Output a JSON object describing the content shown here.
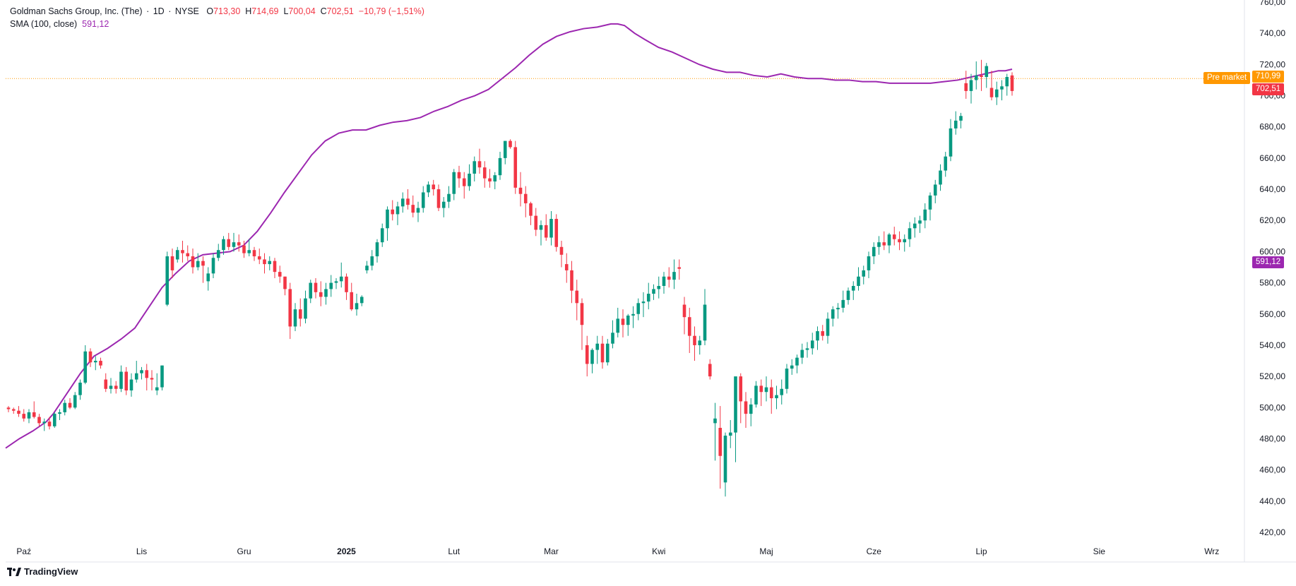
{
  "legend": {
    "symbol": "Goldman Sachs Group, Inc. (The)",
    "interval": "1D",
    "exchange": "NYSE",
    "o_label": "O",
    "o": "713,30",
    "h_label": "H",
    "h": "714,69",
    "l_label": "L",
    "l": "700,04",
    "c_label": "C",
    "c": "702,51",
    "change": "−10,79 (−1,51%)",
    "sma_label": "SMA (100, close)",
    "sma_value": "591,12"
  },
  "tags": {
    "premarket_label": "Pre market",
    "premarket_price": "710,99",
    "last_price": "702,51",
    "sma_price": "591,12"
  },
  "brand": {
    "name": "TradingView"
  },
  "colors": {
    "up": "#089981",
    "down": "#f23645",
    "sma": "#9c27b0",
    "premarket": "#ff9800"
  },
  "chart_data": {
    "type": "candlestick",
    "title": "",
    "y_ticks": [
      "760,00",
      "740,00",
      "720,00",
      "700,00",
      "680,00",
      "660,00",
      "640,00",
      "620,00",
      "600,00",
      "580,00",
      "560,00",
      "540,00",
      "520,00",
      "500,00",
      "480,00",
      "460,00",
      "440,00",
      "420,00"
    ],
    "y_range": [
      410,
      763
    ],
    "x_ticks": [
      {
        "label": "Paź",
        "index": 3,
        "bold": false
      },
      {
        "label": "Lis",
        "index": 26,
        "bold": false
      },
      {
        "label": "Gru",
        "index": 46,
        "bold": false
      },
      {
        "label": "2025",
        "index": 66,
        "bold": true
      },
      {
        "label": "Lut",
        "index": 87,
        "bold": false
      },
      {
        "label": "Mar",
        "index": 106,
        "bold": false
      },
      {
        "label": "Kwi",
        "index": 127,
        "bold": false
      },
      {
        "label": "Maj",
        "index": 148,
        "bold": false
      },
      {
        "label": "Cze",
        "index": 169,
        "bold": false
      },
      {
        "label": "Lip",
        "index": 190,
        "bold": false
      },
      {
        "label": "Sie",
        "index": 213,
        "bold": false
      },
      {
        "label": "Wrz",
        "index": 235,
        "bold": false
      }
    ],
    "x_slots": 250,
    "candles": [
      [
        500,
        501,
        497,
        499
      ],
      [
        499,
        500,
        496,
        498
      ],
      [
        498,
        501,
        494,
        496
      ],
      [
        496,
        499,
        491,
        493
      ],
      [
        493,
        499,
        490,
        497
      ],
      [
        497,
        504,
        493,
        494
      ],
      [
        494,
        496,
        488,
        490
      ],
      [
        490,
        493,
        485,
        491
      ],
      [
        491,
        494,
        486,
        488
      ],
      [
        488,
        497,
        487,
        496
      ],
      [
        496,
        499,
        492,
        497
      ],
      [
        497,
        505,
        495,
        503
      ],
      [
        503,
        506,
        499,
        500
      ],
      [
        500,
        510,
        499,
        508
      ],
      [
        508,
        518,
        505,
        516
      ],
      [
        516,
        540,
        515,
        536
      ],
      [
        536,
        538,
        526,
        529
      ],
      [
        529,
        533,
        524,
        530
      ],
      [
        530,
        532,
        525,
        527
      ],
      [
        518,
        522,
        510,
        512
      ],
      [
        512,
        519,
        509,
        514
      ],
      [
        514,
        517,
        509,
        512
      ],
      [
        512,
        527,
        510,
        523
      ],
      [
        523,
        526,
        508,
        511
      ],
      [
        511,
        522,
        507,
        518
      ],
      [
        518,
        530,
        516,
        522
      ],
      [
        522,
        526,
        518,
        524
      ],
      [
        524,
        528,
        511,
        519
      ],
      [
        519,
        524,
        511,
        518
      ],
      [
        511,
        522,
        508,
        513
      ],
      [
        513,
        527,
        511,
        527
      ],
      [
        566,
        600,
        565,
        597
      ],
      [
        597,
        602,
        583,
        588
      ],
      [
        595,
        603,
        593,
        601
      ],
      [
        601,
        607,
        593,
        599
      ],
      [
        599,
        604,
        594,
        597
      ],
      [
        597,
        602,
        586,
        590
      ],
      [
        590,
        599,
        588,
        594
      ],
      [
        594,
        597,
        580,
        591
      ],
      [
        581,
        590,
        575,
        586
      ],
      [
        586,
        599,
        583,
        596
      ],
      [
        596,
        605,
        594,
        601
      ],
      [
        601,
        610,
        598,
        608
      ],
      [
        608,
        612,
        601,
        603
      ],
      [
        603,
        612,
        600,
        606
      ],
      [
        606,
        611,
        600,
        604
      ],
      [
        604,
        607,
        596,
        599
      ],
      [
        599,
        608,
        597,
        601
      ],
      [
        601,
        603,
        594,
        597
      ],
      [
        597,
        602,
        592,
        595
      ],
      [
        595,
        599,
        586,
        592
      ],
      [
        592,
        597,
        588,
        594
      ],
      [
        594,
        596,
        583,
        587
      ],
      [
        587,
        591,
        580,
        584
      ],
      [
        584,
        584,
        572,
        576
      ],
      [
        576,
        580,
        544,
        552
      ],
      [
        552,
        567,
        549,
        563
      ],
      [
        563,
        570,
        552,
        557
      ],
      [
        557,
        575,
        554,
        570
      ],
      [
        570,
        582,
        567,
        580
      ],
      [
        580,
        583,
        570,
        574
      ],
      [
        574,
        581,
        565,
        571
      ],
      [
        571,
        580,
        566,
        576
      ],
      [
        576,
        585,
        571,
        580
      ],
      [
        580,
        583,
        576,
        581
      ],
      [
        581,
        593,
        577,
        584
      ],
      [
        584,
        586,
        569,
        574
      ],
      [
        574,
        580,
        562,
        563
      ],
      [
        563,
        573,
        559,
        567
      ],
      [
        567,
        572,
        565,
        571
      ],
      [
        588,
        594,
        586,
        591
      ],
      [
        591,
        601,
        588,
        597
      ],
      [
        597,
        608,
        593,
        606
      ],
      [
        606,
        618,
        603,
        615
      ],
      [
        615,
        629,
        607,
        627
      ],
      [
        627,
        633,
        620,
        624
      ],
      [
        624,
        632,
        617,
        629
      ],
      [
        629,
        638,
        625,
        634
      ],
      [
        634,
        640,
        627,
        630
      ],
      [
        630,
        636,
        622,
        625
      ],
      [
        625,
        632,
        619,
        628
      ],
      [
        628,
        642,
        625,
        638
      ],
      [
        638,
        645,
        635,
        643
      ],
      [
        643,
        646,
        636,
        640
      ],
      [
        640,
        643,
        626,
        628
      ],
      [
        628,
        635,
        622,
        632
      ],
      [
        632,
        642,
        628,
        637
      ],
      [
        637,
        653,
        633,
        651
      ],
      [
        651,
        655,
        641,
        647
      ],
      [
        647,
        651,
        634,
        642
      ],
      [
        642,
        656,
        639,
        650
      ],
      [
        650,
        661,
        645,
        658
      ],
      [
        658,
        666,
        650,
        654
      ],
      [
        654,
        658,
        641,
        647
      ],
      [
        647,
        653,
        641,
        645
      ],
      [
        645,
        651,
        640,
        649
      ],
      [
        649,
        664,
        646,
        660
      ],
      [
        660,
        671,
        656,
        671
      ],
      [
        671,
        672,
        666,
        667
      ],
      [
        667,
        671,
        637,
        641
      ],
      [
        641,
        651,
        629,
        637
      ],
      [
        637,
        642,
        622,
        631
      ],
      [
        631,
        632,
        617,
        623
      ],
      [
        623,
        628,
        610,
        614
      ],
      [
        614,
        620,
        604,
        617
      ],
      [
        617,
        624,
        607,
        609
      ],
      [
        609,
        626,
        604,
        621
      ],
      [
        621,
        624,
        600,
        603
      ],
      [
        603,
        607,
        590,
        598
      ],
      [
        592,
        599,
        580,
        588
      ],
      [
        588,
        594,
        567,
        575
      ],
      [
        575,
        582,
        556,
        567
      ],
      [
        567,
        570,
        537,
        553
      ],
      [
        540,
        546,
        520,
        528
      ],
      [
        528,
        538,
        522,
        537
      ],
      [
        537,
        546,
        528,
        541
      ],
      [
        541,
        546,
        525,
        529
      ],
      [
        529,
        544,
        527,
        541
      ],
      [
        541,
        556,
        538,
        548
      ],
      [
        548,
        564,
        545,
        557
      ],
      [
        557,
        563,
        545,
        553
      ],
      [
        553,
        560,
        546,
        559
      ],
      [
        559,
        565,
        551,
        560
      ],
      [
        560,
        570,
        556,
        567
      ],
      [
        567,
        574,
        558,
        568
      ],
      [
        568,
        580,
        563,
        573
      ],
      [
        573,
        579,
        569,
        576
      ],
      [
        576,
        584,
        570,
        578
      ],
      [
        578,
        587,
        573,
        584
      ],
      [
        584,
        590,
        577,
        582
      ],
      [
        582,
        595,
        576,
        587
      ],
      [
        590,
        595,
        582,
        589
      ],
      [
        566,
        571,
        547,
        558
      ],
      [
        558,
        564,
        535,
        546
      ],
      [
        546,
        552,
        530,
        540
      ],
      [
        540,
        546,
        534,
        543
      ],
      [
        543,
        576,
        540,
        566
      ],
      [
        528,
        531,
        518,
        520
      ],
      [
        490,
        503,
        466,
        493
      ],
      [
        487,
        501,
        448,
        469
      ],
      [
        452,
        484,
        443,
        482
      ],
      [
        482,
        492,
        474,
        484
      ],
      [
        484,
        518,
        465,
        520
      ],
      [
        520,
        522,
        490,
        504
      ],
      [
        504,
        510,
        487,
        496
      ],
      [
        496,
        506,
        488,
        502
      ],
      [
        502,
        517,
        500,
        514
      ],
      [
        514,
        518,
        501,
        510
      ],
      [
        510,
        520,
        504,
        513
      ],
      [
        513,
        518,
        496,
        506
      ],
      [
        506,
        514,
        499,
        508
      ],
      [
        508,
        518,
        502,
        512
      ],
      [
        512,
        528,
        509,
        525
      ],
      [
        525,
        531,
        521,
        527
      ],
      [
        527,
        534,
        522,
        532
      ],
      [
        532,
        541,
        528,
        537
      ],
      [
        537,
        542,
        532,
        538
      ],
      [
        538,
        548,
        534,
        543
      ],
      [
        543,
        552,
        537,
        549
      ],
      [
        549,
        553,
        543,
        546
      ],
      [
        546,
        561,
        541,
        557
      ],
      [
        557,
        565,
        552,
        563
      ],
      [
        563,
        567,
        557,
        564
      ],
      [
        564,
        575,
        561,
        569
      ],
      [
        569,
        577,
        566,
        575
      ],
      [
        575,
        581,
        569,
        578
      ],
      [
        578,
        590,
        575,
        584
      ],
      [
        584,
        591,
        579,
        588
      ],
      [
        588,
        600,
        583,
        597
      ],
      [
        597,
        606,
        592,
        603
      ],
      [
        603,
        610,
        598,
        606
      ],
      [
        606,
        613,
        601,
        604
      ],
      [
        604,
        612,
        599,
        611
      ],
      [
        611,
        616,
        604,
        608
      ],
      [
        608,
        613,
        601,
        606
      ],
      [
        606,
        611,
        600,
        608
      ],
      [
        608,
        619,
        603,
        615
      ],
      [
        615,
        622,
        609,
        618
      ],
      [
        618,
        623,
        612,
        620
      ],
      [
        620,
        631,
        615,
        627
      ],
      [
        627,
        638,
        620,
        636
      ],
      [
        636,
        646,
        631,
        643
      ],
      [
        643,
        656,
        639,
        652
      ],
      [
        652,
        664,
        648,
        661
      ],
      [
        661,
        685,
        658,
        679
      ],
      [
        679,
        690,
        675,
        684
      ],
      [
        684,
        689,
        679,
        687
      ],
      [
        708,
        716,
        698,
        703
      ],
      [
        703,
        714,
        695,
        710
      ],
      [
        710,
        722,
        704,
        713
      ],
      [
        713,
        723,
        703,
        712
      ],
      [
        712,
        721,
        705,
        719
      ],
      [
        705,
        716,
        697,
        699
      ],
      [
        699,
        709,
        694,
        704
      ],
      [
        704,
        710,
        697,
        706
      ],
      [
        706,
        714,
        700,
        712
      ],
      [
        713,
        715,
        700,
        703
      ]
    ],
    "sma_points": [
      [
        0,
        474
      ],
      [
        20,
        480
      ],
      [
        40,
        485
      ],
      [
        60,
        491
      ],
      [
        70,
        496
      ],
      [
        90,
        509
      ],
      [
        110,
        522
      ],
      [
        130,
        533
      ],
      [
        150,
        538
      ],
      [
        170,
        544
      ],
      [
        190,
        551
      ],
      [
        210,
        564
      ],
      [
        230,
        577
      ],
      [
        250,
        586
      ],
      [
        270,
        594
      ],
      [
        290,
        598
      ],
      [
        310,
        599
      ],
      [
        330,
        600
      ],
      [
        350,
        604
      ],
      [
        370,
        613
      ],
      [
        390,
        625
      ],
      [
        410,
        638
      ],
      [
        430,
        650
      ],
      [
        450,
        662
      ],
      [
        470,
        671
      ],
      [
        490,
        676
      ],
      [
        510,
        678
      ],
      [
        530,
        678
      ],
      [
        550,
        681
      ],
      [
        570,
        683
      ],
      [
        590,
        684
      ],
      [
        610,
        686
      ],
      [
        630,
        690
      ],
      [
        650,
        693
      ],
      [
        670,
        697
      ],
      [
        690,
        700
      ],
      [
        710,
        704
      ],
      [
        730,
        711
      ],
      [
        750,
        718
      ],
      [
        770,
        726
      ],
      [
        790,
        733
      ],
      [
        810,
        738
      ],
      [
        830,
        741
      ],
      [
        850,
        743
      ],
      [
        870,
        744
      ],
      [
        880,
        745
      ],
      [
        890,
        746
      ],
      [
        900,
        746
      ],
      [
        910,
        745
      ],
      [
        925,
        740
      ],
      [
        940,
        736
      ],
      [
        960,
        731
      ],
      [
        980,
        728
      ],
      [
        1000,
        724
      ],
      [
        1020,
        720
      ],
      [
        1040,
        717
      ],
      [
        1060,
        715
      ],
      [
        1080,
        715
      ],
      [
        1100,
        713
      ],
      [
        1120,
        712
      ],
      [
        1140,
        714
      ],
      [
        1160,
        712
      ],
      [
        1180,
        711
      ],
      [
        1200,
        711
      ],
      [
        1220,
        710
      ],
      [
        1240,
        710
      ],
      [
        1260,
        709
      ],
      [
        1280,
        709
      ],
      [
        1300,
        708
      ],
      [
        1320,
        708
      ],
      [
        1340,
        708
      ],
      [
        1360,
        708
      ],
      [
        1380,
        709
      ],
      [
        1400,
        710
      ],
      [
        1420,
        712
      ],
      [
        1440,
        714
      ],
      [
        1460,
        716
      ],
      [
        1470,
        716
      ],
      [
        1480,
        717
      ]
    ],
    "sma_y_start": 474
  }
}
